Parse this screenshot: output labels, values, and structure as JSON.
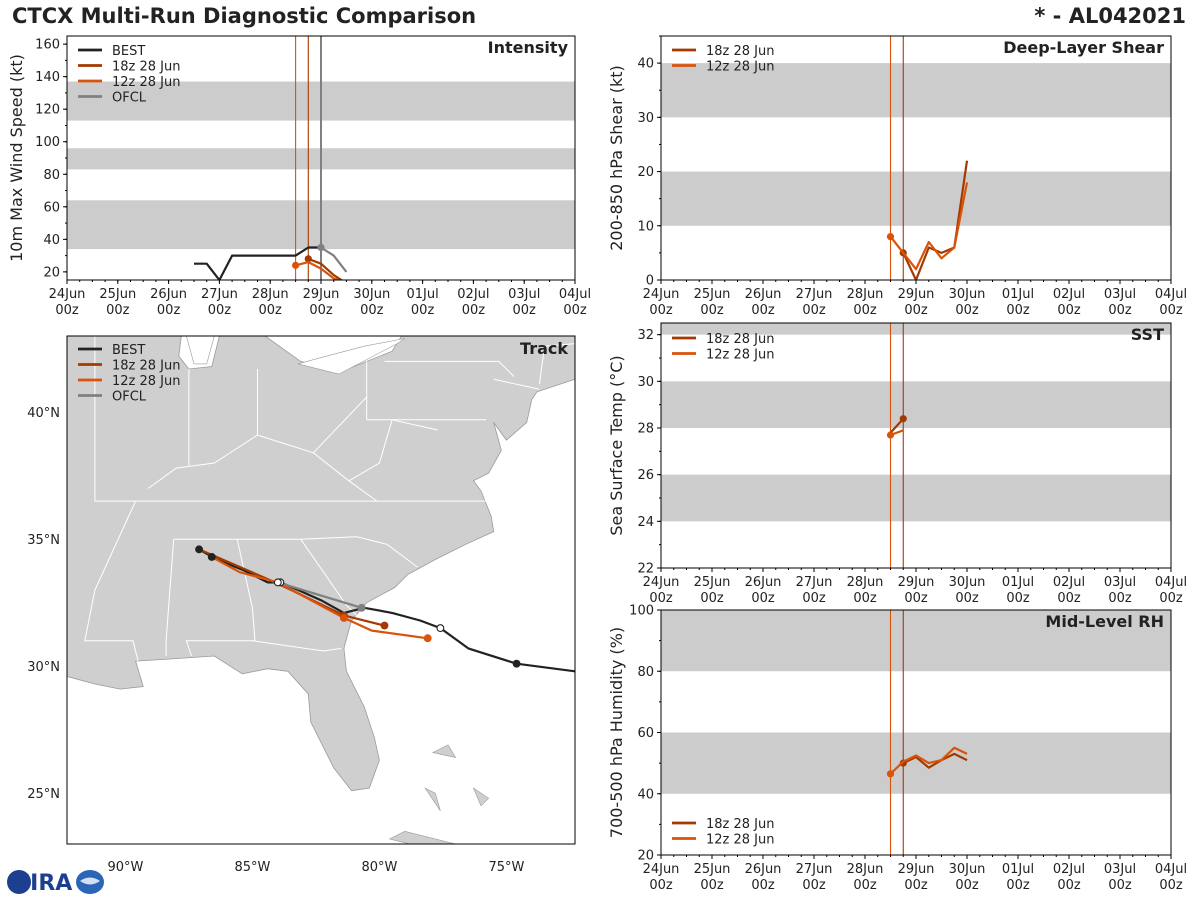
{
  "header": {
    "title": "CTCX Multi-Run Diagnostic Comparison",
    "storm_id": "* - AL042021"
  },
  "logo": {
    "text": "CIRA"
  },
  "colors": {
    "best": "#222222",
    "run18z": "#a33a00",
    "run12z": "#d9530b",
    "ofcl": "#808080",
    "band": "#cccccc",
    "land": "#cfcfcf",
    "state_line": "#ffffff",
    "water": "#ffffff"
  },
  "chart_data": [
    {
      "id": "intensity",
      "type": "line",
      "title": "Intensity",
      "ylabel": "10m Max Wind Speed (kt)",
      "x_ticks": [
        "24Jun|00z",
        "25Jun|00z",
        "26Jun|00z",
        "27Jun|00z",
        "28Jun|00z",
        "29Jun|00z",
        "30Jun|00z",
        "01Jul|00z",
        "02Jul|00z",
        "03Jul|00z",
        "04Jul|00z"
      ],
      "xlim_days": [
        0,
        10
      ],
      "ylim": [
        15,
        165
      ],
      "y_ticks": [
        20,
        40,
        60,
        80,
        100,
        120,
        140,
        160
      ],
      "bands": [
        [
          34,
          64
        ],
        [
          83,
          96
        ],
        [
          113,
          137
        ]
      ],
      "vlines": [
        {
          "day": 4.5,
          "color": "run12z"
        },
        {
          "day": 4.75,
          "color": "run18z"
        },
        {
          "day": 5.0,
          "color": "ofcl"
        }
      ],
      "legend": [
        {
          "label": "BEST",
          "color": "best"
        },
        {
          "label": "18z 28 Jun",
          "color": "run18z"
        },
        {
          "label": "12z 28 Jun",
          "color": "run12z"
        },
        {
          "label": "OFCL",
          "color": "ofcl"
        }
      ],
      "series": [
        {
          "name": "BEST",
          "color": "best",
          "marker_first": false,
          "x": [
            2.5,
            2.75,
            3.0,
            3.25,
            3.5,
            3.75,
            4.0,
            4.25,
            4.5,
            4.75,
            5.0
          ],
          "y": [
            25,
            25,
            15,
            30,
            30,
            30,
            30,
            30,
            30,
            35,
            35
          ]
        },
        {
          "name": "18z 28 Jun",
          "color": "run18z",
          "marker_first": true,
          "x": [
            4.75,
            5.0,
            5.25,
            5.5,
            5.75,
            6.0
          ],
          "y": [
            28,
            25,
            18,
            13,
            14,
            14
          ]
        },
        {
          "name": "12z 28 Jun",
          "color": "run12z",
          "marker_first": true,
          "x": [
            4.5,
            4.75,
            5.0,
            5.25,
            5.5,
            5.75,
            6.0
          ],
          "y": [
            24,
            26,
            22,
            16,
            13,
            14,
            14
          ]
        },
        {
          "name": "OFCL",
          "color": "ofcl",
          "marker_first": true,
          "x": [
            5.0,
            5.25,
            5.5
          ],
          "y": [
            35,
            30,
            20
          ]
        }
      ]
    },
    {
      "id": "shear",
      "type": "line",
      "title": "Deep-Layer Shear",
      "ylabel": "200-850 hPa Shear (kt)",
      "x_ticks": [
        "24Jun|00z",
        "25Jun|00z",
        "26Jun|00z",
        "27Jun|00z",
        "28Jun|00z",
        "29Jun|00z",
        "30Jun|00z",
        "01Jul|00z",
        "02Jul|00z",
        "03Jul|00z",
        "04Jul|00z"
      ],
      "xlim_days": [
        0,
        10
      ],
      "ylim": [
        0,
        45
      ],
      "y_ticks": [
        0,
        10,
        20,
        30,
        40
      ],
      "bands": [
        [
          10,
          20
        ],
        [
          30,
          40
        ]
      ],
      "vlines": [
        {
          "day": 4.5,
          "color": "run12z"
        },
        {
          "day": 4.75,
          "color": "run18z"
        }
      ],
      "legend": [
        {
          "label": "18z 28 Jun",
          "color": "run18z"
        },
        {
          "label": "12z 28 Jun",
          "color": "run12z"
        }
      ],
      "series": [
        {
          "name": "18z 28 Jun",
          "color": "run18z",
          "marker_first": true,
          "x": [
            4.75,
            5.0,
            5.25,
            5.5,
            5.75,
            6.0
          ],
          "y": [
            5,
            0,
            6,
            5,
            6,
            22
          ]
        },
        {
          "name": "12z 28 Jun",
          "color": "run12z",
          "marker_first": true,
          "x": [
            4.5,
            4.75,
            5.0,
            5.25,
            5.5,
            5.75,
            6.0
          ],
          "y": [
            8,
            5,
            2,
            7,
            4,
            6,
            18
          ]
        }
      ]
    },
    {
      "id": "sst",
      "type": "line",
      "title": "SST",
      "ylabel": "Sea Surface Temp (°C)",
      "x_ticks": [
        "24Jun|00z",
        "25Jun|00z",
        "26Jun|00z",
        "27Jun|00z",
        "28Jun|00z",
        "29Jun|00z",
        "30Jun|00z",
        "01Jul|00z",
        "02Jul|00z",
        "03Jul|00z",
        "04Jul|00z"
      ],
      "xlim_days": [
        0,
        10
      ],
      "ylim": [
        22,
        32.5
      ],
      "y_ticks": [
        22,
        24,
        26,
        28,
        30,
        32
      ],
      "bands": [
        [
          24,
          26
        ],
        [
          28,
          30
        ],
        [
          32,
          32.5
        ]
      ],
      "vlines": [
        {
          "day": 4.5,
          "color": "run12z"
        },
        {
          "day": 4.75,
          "color": "run18z"
        }
      ],
      "legend": [
        {
          "label": "18z 28 Jun",
          "color": "run18z"
        },
        {
          "label": "12z 28 Jun",
          "color": "run12z"
        }
      ],
      "series": [
        {
          "name": "18z 28 Jun",
          "color": "run18z",
          "marker_first": true,
          "x": [
            4.75,
            4.5
          ],
          "y": [
            28.4,
            27.8
          ]
        },
        {
          "name": "12z 28 Jun",
          "color": "run12z",
          "marker_first": true,
          "x": [
            4.5,
            4.75
          ],
          "y": [
            27.7,
            27.9
          ]
        }
      ]
    },
    {
      "id": "rh",
      "type": "line",
      "title": "Mid-Level RH",
      "ylabel": "700-500 hPa Humidity (%)",
      "x_ticks": [
        "24Jun|00z",
        "25Jun|00z",
        "26Jun|00z",
        "27Jun|00z",
        "28Jun|00z",
        "29Jun|00z",
        "30Jun|00z",
        "01Jul|00z",
        "02Jul|00z",
        "03Jul|00z",
        "04Jul|00z"
      ],
      "xlim_days": [
        0,
        10
      ],
      "ylim": [
        20,
        100
      ],
      "y_ticks": [
        20,
        40,
        60,
        80,
        100
      ],
      "bands": [
        [
          40,
          60
        ],
        [
          80,
          100
        ]
      ],
      "vlines": [
        {
          "day": 4.5,
          "color": "run12z"
        },
        {
          "day": 4.75,
          "color": "run18z"
        }
      ],
      "legend": [
        {
          "label": "18z 28 Jun",
          "color": "run18z"
        },
        {
          "label": "12z 28 Jun",
          "color": "run12z"
        }
      ],
      "series": [
        {
          "name": "18z 28 Jun",
          "color": "run18z",
          "marker_first": true,
          "x": [
            4.75,
            5.0,
            5.25,
            5.5,
            5.75,
            6.0
          ],
          "y": [
            50,
            52,
            48.5,
            51,
            53,
            51
          ]
        },
        {
          "name": "12z 28 Jun",
          "color": "run12z",
          "marker_first": true,
          "x": [
            4.5,
            4.75,
            5.0,
            5.25,
            5.5,
            5.75,
            6.0
          ],
          "y": [
            46.5,
            50.5,
            52.5,
            50,
            51,
            55,
            53
          ]
        }
      ]
    },
    {
      "id": "track",
      "type": "scatter",
      "title": "Track",
      "lon_ticks": [
        -90,
        -85,
        -80,
        -75
      ],
      "lon_labels": [
        "90°W",
        "85°W",
        "80°W",
        "75°W"
      ],
      "lat_ticks": [
        25,
        30,
        35,
        40
      ],
      "lat_labels": [
        "25°N",
        "30°N",
        "35°N",
        "40°N"
      ],
      "lon_range": [
        -92.3,
        -72.3
      ],
      "lat_range": [
        23.0,
        43.0
      ],
      "legend": [
        {
          "label": "BEST",
          "color": "best"
        },
        {
          "label": "18z 28 Jun",
          "color": "run18z"
        },
        {
          "label": "12z 28 Jun",
          "color": "run12z"
        },
        {
          "label": "OFCL",
          "color": "ofcl"
        }
      ],
      "series": [
        {
          "name": "BEST",
          "color": "best",
          "lon": [
            -72.3,
            -74.6,
            -76.5,
            -77.6,
            -78.4,
            -79.5,
            -80.6,
            -81.4,
            -82.3,
            -83.2,
            -83.9,
            -84.4,
            -85.4,
            -86.4,
            -87.1
          ],
          "lat": [
            29.8,
            30.1,
            30.7,
            31.5,
            31.8,
            32.1,
            32.3,
            32.1,
            32.6,
            33.0,
            33.3,
            33.3,
            33.8,
            34.2,
            34.6
          ],
          "markers": [
            {
              "lon": -74.6,
              "lat": 30.1,
              "fill": "filled"
            },
            {
              "lon": -77.6,
              "lat": 31.5,
              "fill": "open"
            },
            {
              "lon": -83.9,
              "lat": 33.3,
              "fill": "open"
            },
            {
              "lon": -86.6,
              "lat": 34.3,
              "fill": "filled"
            },
            {
              "lon": -87.1,
              "lat": 34.6,
              "fill": "filled"
            }
          ]
        },
        {
          "name": "18z 28 Jun",
          "color": "run18z",
          "lon": [
            -79.8,
            -81.4,
            -84.1,
            -87.1
          ],
          "lat": [
            31.6,
            32.0,
            33.3,
            34.6
          ],
          "markers": [
            {
              "lon": -79.8,
              "lat": 31.6,
              "fill": "filled"
            },
            {
              "lon": -81.4,
              "lat": 32.0,
              "fill": "filled"
            }
          ]
        },
        {
          "name": "12z 28 Jun",
          "color": "run12z",
          "lon": [
            -78.1,
            -80.3,
            -81.4,
            -84.0,
            -85.5,
            -86.6
          ],
          "lat": [
            31.1,
            31.4,
            31.9,
            33.3,
            33.7,
            34.3
          ],
          "markers": [
            {
              "lon": -78.1,
              "lat": 31.1,
              "fill": "filled"
            },
            {
              "lon": -81.4,
              "lat": 31.9,
              "fill": "filled"
            }
          ]
        },
        {
          "name": "OFCL",
          "color": "ofcl",
          "lon": [
            -80.7,
            -84.0
          ],
          "lat": [
            32.3,
            33.3
          ],
          "markers": [
            {
              "lon": -80.7,
              "lat": 32.3,
              "fill": "filled"
            },
            {
              "lon": -84.0,
              "lat": 33.3,
              "fill": "open"
            }
          ]
        }
      ]
    }
  ]
}
